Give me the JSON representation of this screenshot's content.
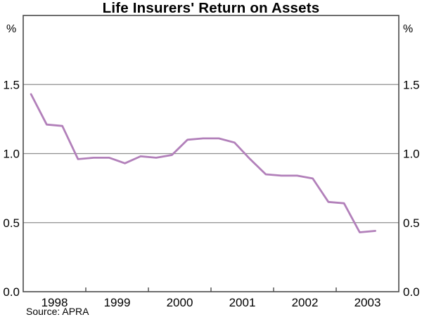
{
  "title": "Life Insurers' Return on Assets",
  "source_note": "Source: APRA",
  "units": {
    "left": "%",
    "right": "%"
  },
  "colors": {
    "line": "#b280ba",
    "grid": "#8e8e8e",
    "frame": "#4a4a4a",
    "text": "#000000",
    "background": "#ffffff"
  },
  "chart_data": {
    "type": "line",
    "title": "Life Insurers' Return on Assets",
    "ylabel": "%",
    "x_unit": "quarter",
    "categories": [
      "1998 Q1",
      "1998 Q2",
      "1998 Q3",
      "1998 Q4",
      "1999 Q1",
      "1999 Q2",
      "1999 Q3",
      "1999 Q4",
      "2000 Q1",
      "2000 Q2",
      "2000 Q3",
      "2000 Q4",
      "2001 Q1",
      "2001 Q2",
      "2001 Q3",
      "2001 Q4",
      "2002 Q1",
      "2002 Q2",
      "2002 Q3",
      "2002 Q4",
      "2003 Q1",
      "2003 Q2",
      "2003 Q3"
    ],
    "x": [
      1998.125,
      1998.375,
      1998.625,
      1998.875,
      1999.125,
      1999.375,
      1999.625,
      1999.875,
      2000.125,
      2000.375,
      2000.625,
      2000.875,
      2001.125,
      2001.375,
      2001.625,
      2001.875,
      2002.125,
      2002.375,
      2002.625,
      2002.875,
      2003.125,
      2003.375,
      2003.625
    ],
    "series": [
      {
        "name": "Life insurers' return on assets (%)",
        "values": [
          1.43,
          1.21,
          1.2,
          0.96,
          0.97,
          0.97,
          0.93,
          0.98,
          0.97,
          0.99,
          1.1,
          1.11,
          1.11,
          1.08,
          0.96,
          0.85,
          0.84,
          0.84,
          0.82,
          0.65,
          0.64,
          0.43,
          0.44
        ]
      }
    ],
    "xlim": [
      1998,
      2004
    ],
    "ylim": [
      0,
      2
    ],
    "yticks_labeled": [
      0.0,
      0.5,
      1.0,
      1.5
    ],
    "gridlines": [
      0.5,
      1.0,
      1.5
    ],
    "x_year_labels": [
      "1998",
      "1999",
      "2000",
      "2001",
      "2002",
      "2003"
    ],
    "x_boundary_ticks": [
      1999,
      2000,
      2001,
      2002,
      2003
    ],
    "grid": true,
    "legend_position": "none",
    "source": "Source: APRA"
  }
}
